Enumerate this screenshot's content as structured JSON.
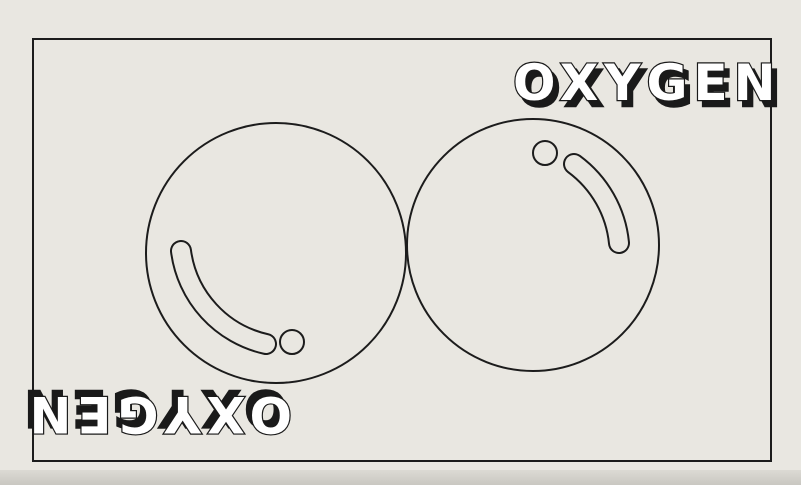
{
  "card": {
    "label_top": "OXYGEN",
    "label_bottom": "OXYGEN",
    "line_color": "#1c1c1c",
    "card_color": "#e9e7e1"
  },
  "molecule": {
    "atoms": [
      "left-atom",
      "right-atom"
    ]
  }
}
